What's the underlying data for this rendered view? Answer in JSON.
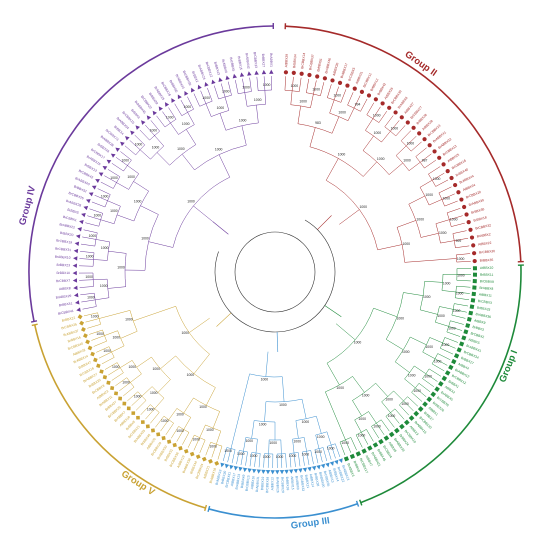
{
  "colors": {
    "group_i": "#1e8a3a",
    "group_ii": "#a52a2a",
    "group_iii": "#3a8fd0",
    "group_iv": "#6b3a9c",
    "group_v": "#c9a233",
    "branch_dark": "#333333"
  },
  "groups": [
    {
      "id": "group_i",
      "label": "Group I",
      "color": "#1e8a3a",
      "marker": "square"
    },
    {
      "id": "group_ii",
      "label": "Group II",
      "color": "#a52a2a",
      "marker": "circle"
    },
    {
      "id": "group_iii",
      "label": "Group III",
      "color": "#3a8fd0",
      "marker": "triangle"
    },
    {
      "id": "group_iv",
      "label": "Group IV",
      "color": "#6b3a9c",
      "marker": "triangle"
    },
    {
      "id": "group_v",
      "label": "Group V",
      "color": "#c9a233",
      "marker": "diamond"
    }
  ],
  "leaves": {
    "group_ii": [
      "AtBBX29",
      "BrBBX34",
      "BrCBBX14",
      "BrCBBX37",
      "BrBBX51",
      "BrABBX46",
      "AtBBX30",
      "BrABBX17",
      "BrCBBX5",
      "AtBBX31",
      "BrCBBX11",
      "BrBBX12",
      "BrBBX42",
      "AtBBX26",
      "BrCBBX39",
      "BrABBX6",
      "AtBBX27",
      "BrCBBX27",
      "BrBBX28",
      "AtBBX28",
      "BrCBBX23",
      "BrABBX41",
      "BrABBX32",
      "BrCBBX13",
      "AtBBX25",
      "BrCBBX18",
      "BrBBX40",
      "BrABBX44",
      "AtBBX24",
      "BrCBBX20",
      "BrABBX39",
      "BrBBX36",
      "BrBBX18",
      "BrCBBX32",
      "BrABBX2",
      "AtBBX22",
      "BrCBBX30",
      "BrBBX35"
    ],
    "group_i": [
      "AtBBX10",
      "BrBBX11",
      "BrCBBX9",
      "BrABBX8",
      "AtBBX11",
      "BrCBBX3",
      "BrBBX33",
      "BrABBX36",
      "AtBBX9",
      "BrBBX3",
      "BrCBBX2",
      "AtBBX5",
      "BrABBX41",
      "BrCBBX34",
      "BrBBX17",
      "AtBBX4",
      "BrABBX12",
      "BrCBBX12",
      "BrBBX1",
      "AtBBX2",
      "BrABBX5",
      "BrCBBX6",
      "BrBBX26",
      "AtBBX1",
      "BrBBX7",
      "BrCBBX10",
      "BrABBX16",
      "AtBBX3",
      "BrCBBX19",
      "BrBBX24",
      "BrABBX33",
      "AtBBX6",
      "BrCBBX4",
      "BrBBX45",
      "BrABBX21",
      "AtBBX7",
      "BrCBBX17",
      "BrBBX9",
      "BrABBX3"
    ],
    "group_iii": [
      "BrABBX13",
      "BrCBBX22",
      "BrBBX14",
      "AtBBX13",
      "BrCBBX35",
      "BrABBX20",
      "BrBBX38",
      "AtBBX14",
      "BrBBX21",
      "BrCBBX33",
      "BrABBX9",
      "AtBBX15",
      "BrBBX39",
      "BrCBBX28",
      "BrABBX26",
      "AtBBX12",
      "BrCBBX38",
      "BrBBX19",
      "BrABBX31",
      "AtBBX16",
      "BrCBBX15",
      "BrBBX49",
      "BrABBX23",
      "AtBBX17",
      "BrCBBX31",
      "BrBBX30",
      "BrABBX19"
    ],
    "group_v": [
      "BrABBX18",
      "AtBBX21",
      "BrCBBX24",
      "BrBBX44",
      "BrABBX38",
      "AtBBX19",
      "BrCBBX36",
      "BrBBX31",
      "BrABBX30",
      "BrCBBX29",
      "AtBBX20",
      "BrBBX46",
      "BrABBX35",
      "BrCBBX21",
      "BrBBX8",
      "AtBBX18",
      "BrABBX7",
      "BrCBBX25",
      "BrBBX37",
      "BrABBX11",
      "AtBBX23",
      "BrCBBX8",
      "BrBBX25",
      "BrABBX27",
      "BrCBBX16",
      "BrBBX47",
      "BrABBX14",
      "AtBBX32",
      "BrCBBX40",
      "BrBBX16",
      "BrABBX37",
      "BrCBBX26",
      "BrBBX22"
    ],
    "group_iv": [
      "BrCBBX41",
      "BrBBX41",
      "BrABBX29",
      "AtBBX8",
      "BrCBBX7",
      "BrBBX10",
      "BrBBX23",
      "BrABBX10",
      "BrCBBX31",
      "BrCBBX19",
      "BrBBX20",
      "BrABBX22",
      "BrCBBX1",
      "BrBBX5",
      "BrABBX28",
      "BrCBBX26",
      "BrBBX32",
      "BrABBX40",
      "BrCBBX42",
      "BrBBX13",
      "BrABBX15",
      "BrCBBX17",
      "BrBBX48",
      "BrABBX28",
      "BrCBBX73",
      "BrBBX4",
      "BrABBX34",
      "BrCBBX15",
      "BrBBX6",
      "BrABBX45",
      "BrCBBX22",
      "BrBBX29",
      "BrABBX25",
      "BrCBBX16",
      "BrBBX50",
      "BrABBX43",
      "BrCBBX39",
      "BrBBX2",
      "BrABBX24",
      "BrCBBX12",
      "BrBBX43",
      "BrABBX4",
      "BrCBBX5",
      "BrBBX15",
      "BrABBX42",
      "BrCBBX33",
      "BrBBX27",
      "BrABBX1"
    ]
  },
  "bootstrap_values": [
    "1000",
    "1000",
    "1000",
    "994",
    "1000",
    "1000",
    "1000",
    "987",
    "1000",
    "1000",
    "1000",
    "999",
    "1000",
    "1000",
    "1000",
    "1000",
    "1000",
    "1000",
    "1000",
    "983",
    "1000",
    "1000",
    "1000",
    "1000",
    "1000",
    "1000",
    "1000",
    "1000",
    "1000",
    "1000",
    "1000",
    "1000",
    "1000",
    "1000",
    "1000",
    "1000",
    "1000",
    "1000",
    "1000",
    "1000",
    "1000",
    "1000",
    "1000",
    "1000",
    "1000",
    "1000",
    "1000",
    "1000",
    "1000",
    "1000",
    "1000",
    "1000",
    "1000",
    "1000",
    "1000",
    "1000",
    "1000",
    "1000",
    "1000",
    "1000",
    "1000",
    "1000",
    "1000",
    "1000",
    "1000",
    "1000",
    "1000",
    "1000",
    "1000",
    "1000",
    "1000",
    "1000",
    "1000",
    "1000",
    "1000",
    "1000",
    "1000",
    "1000",
    "1000",
    "1000",
    "1000",
    "1000",
    "1000",
    "1000",
    "1000",
    "1000",
    "1000",
    "1000",
    "1000",
    "1000",
    "1000",
    "1000",
    "1000",
    "1000",
    "1000",
    "1000",
    "1000",
    "1000",
    "1000",
    "1000",
    "1000",
    "1000",
    "1000",
    "1000",
    "1000",
    "1000",
    "1000",
    "1000",
    "1000",
    "1000",
    "1000",
    "1000",
    "1000",
    "1000",
    "1000",
    "1000",
    "1000",
    "1000",
    "1000",
    "1000",
    "1000",
    "1000",
    "1000",
    "1000",
    "1000",
    "1000",
    "1000",
    "1000",
    "1000",
    "1000",
    "1000",
    "1000",
    "1000",
    "1000",
    "1000",
    "1000",
    "1000",
    "1000",
    "1000",
    "1000",
    "1000",
    "1000",
    "1000",
    "1000",
    "1000",
    "1000",
    "1000",
    "1000",
    "1000",
    "1000",
    "1000",
    "1000",
    "1000",
    "1000",
    "1000",
    "1000",
    "1000",
    "1000",
    "1000",
    "1000",
    "1000",
    "1000"
  ]
}
